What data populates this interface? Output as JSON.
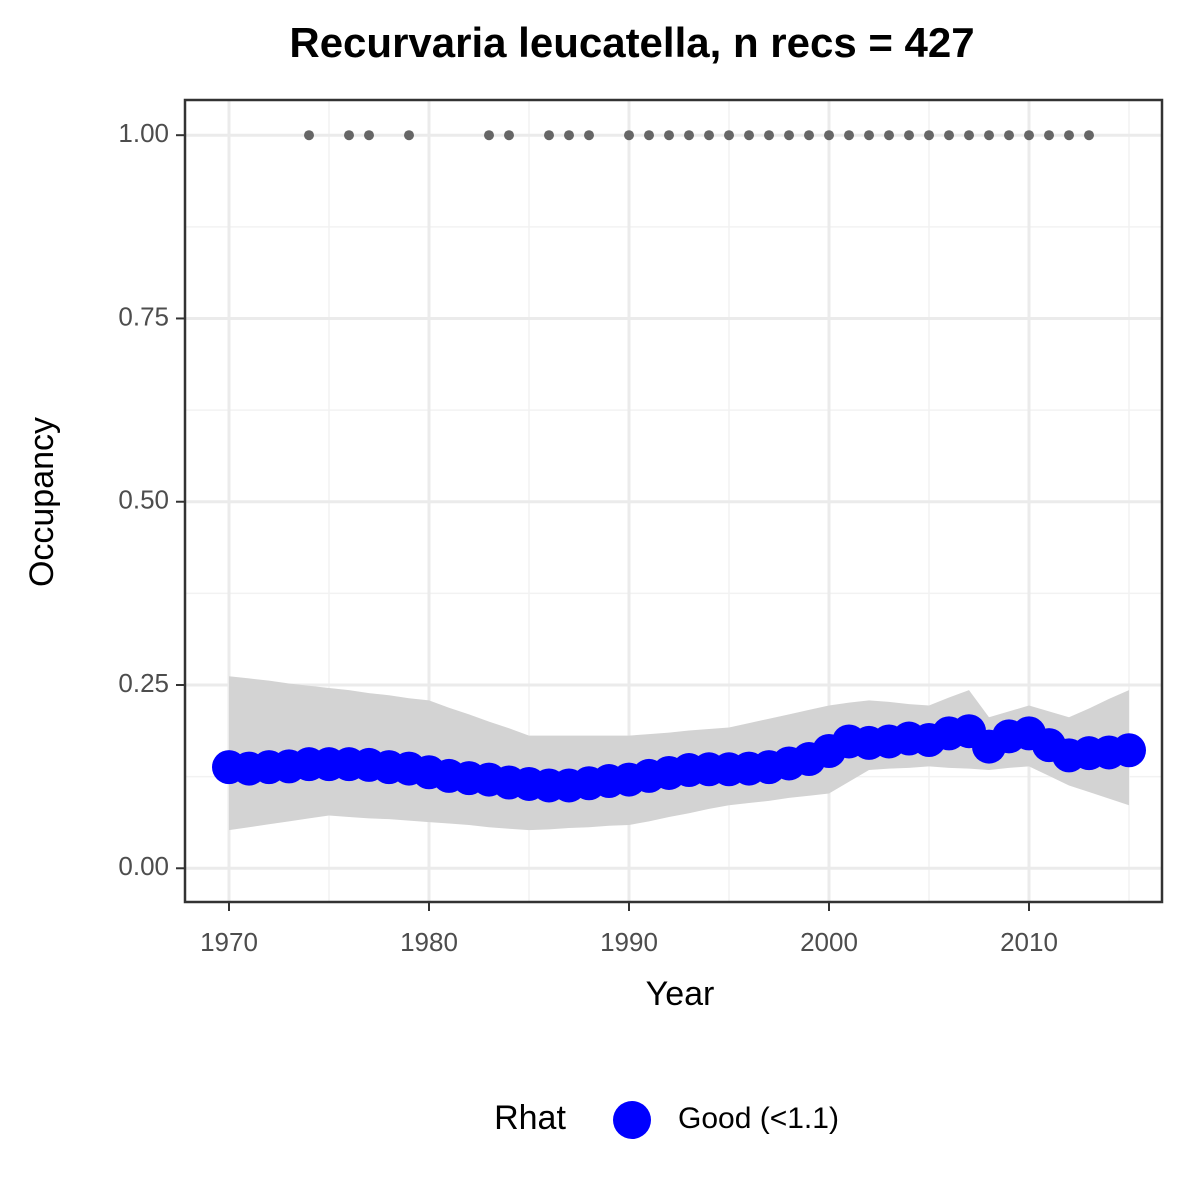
{
  "chart_data": {
    "type": "line",
    "title": "Recurvaria leucatella, n recs = 427",
    "x_label": "Year",
    "y_label": "Occupancy",
    "legend_title": "Rhat",
    "x": [
      1970,
      1971,
      1972,
      1973,
      1974,
      1975,
      1976,
      1977,
      1978,
      1979,
      1980,
      1981,
      1982,
      1983,
      1984,
      1985,
      1986,
      1987,
      1988,
      1989,
      1990,
      1991,
      1992,
      1993,
      1994,
      1995,
      1996,
      1997,
      1998,
      1999,
      2000,
      2001,
      2002,
      2003,
      2004,
      2005,
      2006,
      2007,
      2008,
      2009,
      2010,
      2011,
      2012,
      2013,
      2014,
      2015
    ],
    "series": [
      {
        "name": "Good (<1.1)",
        "color": "#0000ff",
        "values": [
          0.138,
          0.136,
          0.138,
          0.139,
          0.142,
          0.142,
          0.142,
          0.141,
          0.138,
          0.136,
          0.131,
          0.126,
          0.123,
          0.121,
          0.117,
          0.115,
          0.113,
          0.113,
          0.116,
          0.119,
          0.121,
          0.126,
          0.13,
          0.134,
          0.135,
          0.135,
          0.136,
          0.138,
          0.143,
          0.149,
          0.16,
          0.173,
          0.171,
          0.173,
          0.177,
          0.175,
          0.184,
          0.187,
          0.166,
          0.18,
          0.184,
          0.168,
          0.154,
          0.157,
          0.158,
          0.161
        ]
      }
    ],
    "band": {
      "color": "#d3d3d3",
      "upper": [
        0.262,
        0.259,
        0.256,
        0.252,
        0.249,
        0.246,
        0.243,
        0.239,
        0.236,
        0.232,
        0.229,
        0.219,
        0.21,
        0.2,
        0.191,
        0.181,
        0.181,
        0.181,
        0.181,
        0.181,
        0.181,
        0.183,
        0.185,
        0.188,
        0.19,
        0.192,
        0.198,
        0.204,
        0.21,
        0.216,
        0.222,
        0.226,
        0.229,
        0.227,
        0.224,
        0.222,
        0.233,
        0.243,
        0.206,
        0.214,
        0.222,
        0.214,
        0.206,
        0.218,
        0.231,
        0.243
      ],
      "lower": [
        0.052,
        0.056,
        0.06,
        0.064,
        0.068,
        0.072,
        0.07,
        0.068,
        0.067,
        0.065,
        0.063,
        0.061,
        0.059,
        0.056,
        0.054,
        0.052,
        0.053,
        0.055,
        0.056,
        0.058,
        0.059,
        0.064,
        0.07,
        0.075,
        0.081,
        0.086,
        0.089,
        0.092,
        0.096,
        0.099,
        0.102,
        0.118,
        0.134,
        0.136,
        0.137,
        0.139,
        0.137,
        0.136,
        0.134,
        0.137,
        0.139,
        0.126,
        0.113,
        0.104,
        0.095,
        0.086
      ]
    },
    "observations": {
      "color": "#666666",
      "x": [
        1974,
        1976,
        1977,
        1979,
        1983,
        1984,
        1986,
        1987,
        1988,
        1990,
        1991,
        1992,
        1993,
        1994,
        1995,
        1996,
        1997,
        1998,
        1999,
        2000,
        2001,
        2002,
        2003,
        2004,
        2005,
        2006,
        2007,
        2008,
        2009,
        2010,
        2011,
        2012,
        2013
      ],
      "values": [
        1,
        1,
        1,
        1,
        1,
        1,
        1,
        1,
        1,
        1,
        1,
        1,
        1,
        1,
        1,
        1,
        1,
        1,
        1,
        1,
        1,
        1,
        1,
        1,
        1,
        1,
        1,
        1,
        1,
        1,
        1,
        1,
        1
      ]
    },
    "xlim": [
      1967.8,
      2016.65
    ],
    "ylim": [
      -0.046,
      1.048
    ],
    "xticks": [
      1970,
      1980,
      1990,
      2000,
      2010
    ],
    "yticks": [
      {
        "value": 0,
        "label": "0.00"
      },
      {
        "value": 0.25,
        "label": "0.25"
      },
      {
        "value": 0.5,
        "label": "0.50"
      },
      {
        "value": 0.75,
        "label": "0.75"
      },
      {
        "value": 1,
        "label": "1.00"
      }
    ],
    "x_minor_grid": [
      1975,
      1985,
      1995,
      2005,
      2015
    ],
    "y_minor_grid": [
      0.125,
      0.375,
      0.625,
      0.875
    ],
    "grid": true
  }
}
